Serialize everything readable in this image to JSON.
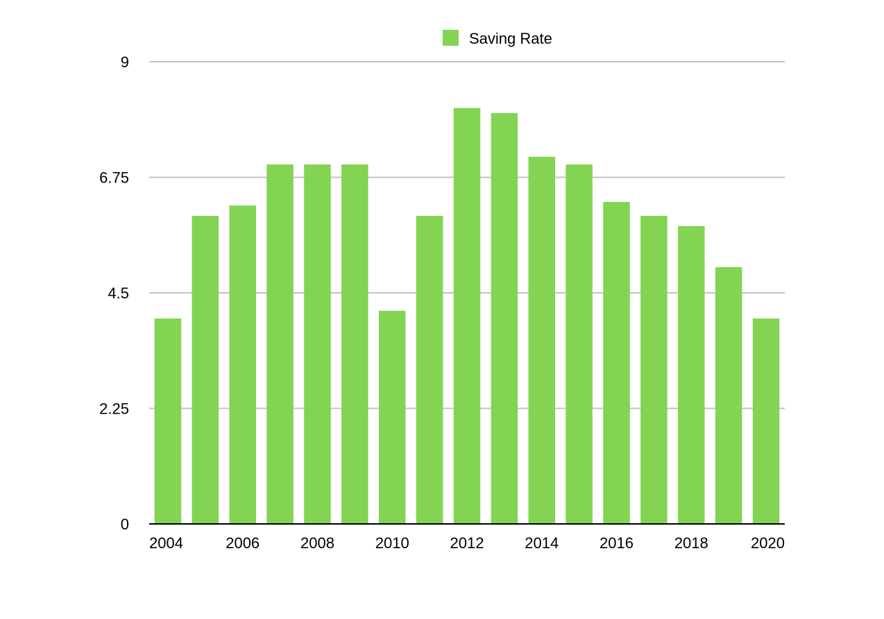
{
  "chart_data": {
    "type": "bar",
    "categories": [
      "2004",
      "2005",
      "2006",
      "2007",
      "2008",
      "2009",
      "2010",
      "2011",
      "2012",
      "2013",
      "2014",
      "2015",
      "2016",
      "2017",
      "2018",
      "2019",
      "2020"
    ],
    "series": [
      {
        "name": "Saving Rate",
        "values": [
          4.0,
          6.0,
          6.2,
          7.0,
          7.0,
          7.0,
          4.15,
          6.0,
          8.1,
          8.0,
          7.15,
          7.0,
          6.27,
          6.0,
          5.8,
          5.0,
          4.0
        ],
        "color": "#82d452"
      }
    ],
    "x_tick_labels": [
      "2004",
      "2006",
      "2008",
      "2010",
      "2012",
      "2014",
      "2016",
      "2018",
      "2020"
    ],
    "y_ticks": [
      "0",
      "2.25",
      "4.5",
      "6.75",
      "9"
    ],
    "ylim": [
      0,
      9
    ],
    "grid": true,
    "legend": {
      "position": "top-center",
      "entries": [
        "Saving Rate"
      ]
    },
    "colors": {
      "bar": "#82d452",
      "grid": "#c3c3c3",
      "axis": "#000000"
    }
  }
}
